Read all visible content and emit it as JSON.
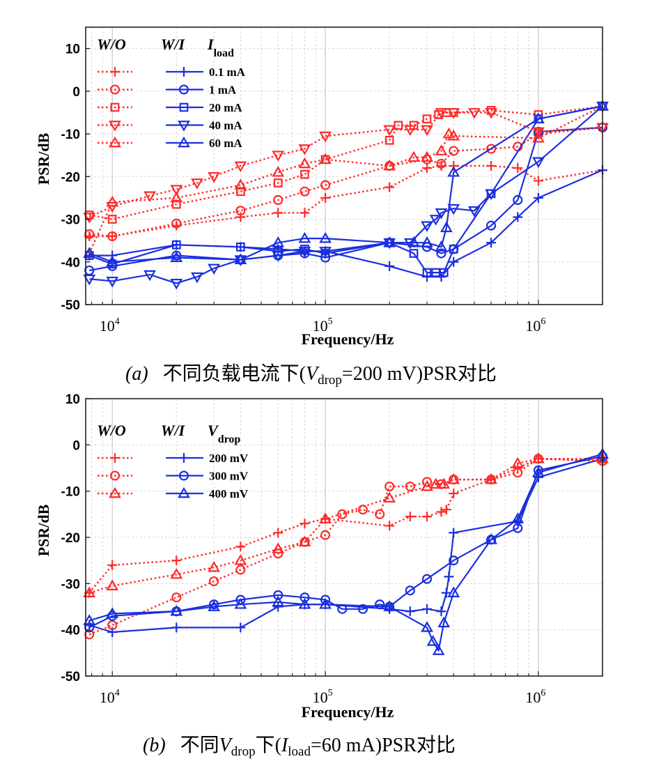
{
  "colors": {
    "wo": "#ff2a2a",
    "wi": "#1a2fe0"
  },
  "chart_data": [
    {
      "type": "line",
      "xscale": "log",
      "xlim": [
        7500,
        2000000
      ],
      "ylim": [
        -50,
        15
      ],
      "xlabel": "Frequency/Hz",
      "ylabel": "PSR/dB",
      "x_ticks": [
        10000,
        100000,
        1000000
      ],
      "x_tick_labels": [
        {
          "base": "10",
          "exp": "4"
        },
        {
          "base": "10",
          "exp": "5"
        },
        {
          "base": "10",
          "exp": "6"
        }
      ],
      "y_ticks": [
        10,
        0,
        -10,
        -20,
        -30,
        -40,
        -50
      ],
      "y_tick_labels": [
        "10",
        "0",
        "-10",
        "-20",
        "-30",
        "-40",
        "-50"
      ],
      "grid": true,
      "legend": {
        "position": "top-left",
        "col_wo": "W/O",
        "col_wi": "W/I",
        "col_param": "I",
        "col_param_sub": "load"
      },
      "caption": {
        "label": "(a)",
        "text1": "不同负载电流下(",
        "v": "V",
        "vsub": "drop",
        "text2": "=200 mV)PSR对比"
      },
      "groups": [
        {
          "label": "0.1 mA",
          "marker": "plus",
          "wo": {
            "x": [
              7800,
              10000,
              20000,
              40000,
              60000,
              80000,
              100000,
              200000,
              300000,
              350000,
              400000,
              600000,
              800000,
              1000000,
              2000000
            ],
            "y": [
              -34,
              -34,
              -31.5,
              -29.5,
              -28.5,
              -28.5,
              -25,
              -22.5,
              -18,
              -17.5,
              -17.5,
              -17.5,
              -18,
              -21,
              -18.5
            ]
          },
          "wi": {
            "x": [
              7800,
              10000,
              20000,
              40000,
              60000,
              80000,
              100000,
              200000,
              300000,
              350000,
              400000,
              600000,
              800000,
              1000000,
              2000000
            ],
            "y": [
              -38.5,
              -38.5,
              -36,
              -36.5,
              -37,
              -37.5,
              -37.5,
              -41,
              -43.5,
              -43.5,
              -40,
              -35.5,
              -29.5,
              -25,
              -18.5
            ]
          }
        },
        {
          "label": "1 mA",
          "marker": "circle",
          "wo": {
            "x": [
              7800,
              10000,
              20000,
              40000,
              60000,
              80000,
              100000,
              200000,
              300000,
              350000,
              400000,
              600000,
              800000,
              1000000,
              2000000
            ],
            "y": [
              -33.5,
              -34,
              -31,
              -28,
              -25.5,
              -23.5,
              -22,
              -17.5,
              -16,
              -17,
              -14,
              -13.5,
              -13,
              -10,
              -8.5
            ]
          },
          "wi": {
            "x": [
              7800,
              10000,
              20000,
              40000,
              60000,
              80000,
              100000,
              200000,
              300000,
              350000,
              400000,
              600000,
              800000,
              1000000,
              2000000
            ],
            "y": [
              -42,
              -41,
              -38.5,
              -39.5,
              -38.5,
              -38,
              -39,
              -35.5,
              -36.5,
              -38,
              -37,
              -31.5,
              -25.5,
              -9.5,
              -8.5
            ]
          }
        },
        {
          "label": "20 mA",
          "marker": "square",
          "wo": {
            "x": [
              7800,
              10000,
              20000,
              40000,
              60000,
              80000,
              100000,
              200000,
              220000,
              260000,
              300000,
              340000,
              370000,
              400000,
              600000,
              1000000,
              2000000
            ],
            "y": [
              -29,
              -30,
              -26.5,
              -23.5,
              -21.5,
              -19.5,
              -16,
              -11.5,
              -8,
              -8,
              -6.5,
              -5.5,
              -5,
              -5,
              -4.5,
              -5.5,
              -3.5
            ]
          },
          "wi": {
            "x": [
              7800,
              10000,
              20000,
              40000,
              60000,
              80000,
              100000,
              200000,
              260000,
              300000,
              330000,
              360000,
              400000,
              600000,
              1000000,
              2000000
            ],
            "y": [
              -38.5,
              -40.5,
              -36,
              -36.5,
              -37.5,
              -37,
              -38,
              -35.5,
              -38,
              -42.5,
              -42.5,
              -42.5,
              -37,
              -24,
              -6.5,
              -3.5
            ]
          }
        },
        {
          "label": "40 mA",
          "marker": "triangle-down",
          "wo": {
            "x": [
              7800,
              10000,
              15000,
              20000,
              25000,
              30000,
              40000,
              60000,
              80000,
              100000,
              200000,
              250000,
              300000,
              350000,
              400000,
              500000,
              600000,
              1000000,
              2000000
            ],
            "y": [
              -29.5,
              -27,
              -24.5,
              -23,
              -21.5,
              -20,
              -17.5,
              -15,
              -13.5,
              -10.5,
              -9,
              -9,
              -9,
              -5,
              -5,
              -5,
              -5,
              -9.5,
              -8.5
            ]
          },
          "wi": {
            "x": [
              7800,
              10000,
              15000,
              20000,
              25000,
              30000,
              40000,
              60000,
              80000,
              100000,
              200000,
              250000,
              300000,
              330000,
              350000,
              400000,
              500000,
              600000,
              1000000,
              2000000
            ],
            "y": [
              -44,
              -44.5,
              -43,
              -45,
              -43.5,
              -41.5,
              -39.5,
              -38.5,
              -37.5,
              -37.5,
              -35.5,
              -35.5,
              -31.5,
              -30,
              -28.5,
              -27.5,
              -28,
              -24,
              -16.5,
              -3.5
            ]
          }
        },
        {
          "label": "60 mA",
          "marker": "triangle-up",
          "wo": {
            "x": [
              7800,
              10000,
              20000,
              40000,
              60000,
              80000,
              100000,
              200000,
              260000,
              300000,
              350000,
              380000,
              400000,
              1000000,
              2000000
            ],
            "y": [
              -38,
              -26,
              -25,
              -22,
              -19,
              -17,
              -16,
              -17.5,
              -15.5,
              -15.5,
              -14,
              -10,
              -10.5,
              -11,
              -3.5
            ]
          },
          "wi": {
            "x": [
              7800,
              10000,
              20000,
              40000,
              60000,
              80000,
              100000,
              200000,
              260000,
              300000,
              350000,
              370000,
              400000,
              1000000,
              2000000
            ],
            "y": [
              -38,
              -40,
              -39,
              -39.5,
              -35.5,
              -34.5,
              -34.5,
              -35.5,
              -35.5,
              -35.5,
              -36.5,
              -32,
              -19,
              -6.5,
              -3.5
            ]
          }
        }
      ]
    },
    {
      "type": "line",
      "xscale": "log",
      "xlim": [
        7500,
        2000000
      ],
      "ylim": [
        -50,
        10
      ],
      "xlabel": "Frequency/Hz",
      "ylabel": "PSR/dB",
      "x_ticks": [
        10000,
        100000,
        1000000
      ],
      "x_tick_labels": [
        {
          "base": "10",
          "exp": "4"
        },
        {
          "base": "10",
          "exp": "5"
        },
        {
          "base": "10",
          "exp": "6"
        }
      ],
      "y_ticks": [
        10,
        0,
        -10,
        -20,
        -30,
        -40,
        -50
      ],
      "y_tick_labels": [
        "10",
        "0",
        "-10",
        "-20",
        "-30",
        "-40",
        "-50"
      ],
      "grid": true,
      "legend": {
        "position": "top-left",
        "col_wo": "W/O",
        "col_wi": "W/I",
        "col_param": "V",
        "col_param_sub": "drop"
      },
      "caption": {
        "label": "(b)",
        "text1": "不同",
        "v": "V",
        "vsub": "drop",
        "text2": "下(",
        "i": "I",
        "isub": "load",
        "text3": "=60 mA)PSR对比"
      },
      "groups": [
        {
          "label": "200 mV",
          "marker": "plus",
          "wo": {
            "x": [
              7800,
              10000,
              20000,
              40000,
              60000,
              80000,
              100000,
              200000,
              250000,
              300000,
              350000,
              370000,
              400000,
              600000,
              800000,
              1000000,
              2000000
            ],
            "y": [
              -32,
              -26,
              -25,
              -22,
              -19,
              -17,
              -16,
              -17.5,
              -15.5,
              -15.5,
              -14.5,
              -14,
              -10.5,
              -7.5,
              -5,
              -3,
              -3.5
            ]
          },
          "wi": {
            "x": [
              7800,
              10000,
              20000,
              40000,
              60000,
              80000,
              100000,
              200000,
              250000,
              300000,
              350000,
              370000,
              380000,
              400000,
              800000,
              1000000,
              2000000
            ],
            "y": [
              -39,
              -40.5,
              -39.5,
              -39.5,
              -35,
              -34.5,
              -34.5,
              -35.5,
              -36,
              -35.5,
              -36,
              -32,
              -28.5,
              -19,
              -16.5,
              -7,
              -3
            ]
          }
        },
        {
          "label": "300 mV",
          "marker": "circle",
          "wo": {
            "x": [
              7800,
              10000,
              20000,
              30000,
              40000,
              60000,
              80000,
              100000,
              120000,
              150000,
              180000,
              200000,
              250000,
              300000,
              350000,
              400000,
              600000,
              800000,
              1000000,
              2000000
            ],
            "y": [
              -41,
              -39,
              -33,
              -29.5,
              -27,
              -23.5,
              -21,
              -19.5,
              -15,
              -14,
              -15,
              -9,
              -9,
              -8,
              -8.5,
              -7.5,
              -7.5,
              -6,
              -3,
              -3.5
            ]
          },
          "wi": {
            "x": [
              7800,
              10000,
              20000,
              30000,
              40000,
              60000,
              80000,
              100000,
              120000,
              150000,
              180000,
              200000,
              250000,
              300000,
              400000,
              600000,
              800000,
              1000000,
              2000000
            ],
            "y": [
              -39.5,
              -37,
              -36,
              -34.5,
              -33.5,
              -32.5,
              -33,
              -33.5,
              -35.5,
              -35.5,
              -34.5,
              -35,
              -31.5,
              -29,
              -25,
              -20.5,
              -18,
              -5.5,
              -2.5
            ]
          }
        },
        {
          "label": "400 mV",
          "marker": "triangle-up",
          "wo": {
            "x": [
              7800,
              10000,
              20000,
              30000,
              40000,
              60000,
              80000,
              100000,
              200000,
              300000,
              330000,
              360000,
              400000,
              600000,
              800000,
              1000000,
              2000000
            ],
            "y": [
              -32,
              -30.5,
              -28,
              -26.5,
              -25,
              -22.5,
              -21,
              -16,
              -11.5,
              -9,
              -8.5,
              -8.5,
              -7.5,
              -7.5,
              -4,
              -3,
              -3
            ]
          },
          "wi": {
            "x": [
              7800,
              10000,
              20000,
              30000,
              40000,
              60000,
              80000,
              100000,
              200000,
              300000,
              320000,
              340000,
              360000,
              400000,
              600000,
              800000,
              1000000,
              2000000
            ],
            "y": [
              -38,
              -36.5,
              -36,
              -35,
              -34.5,
              -34,
              -34.5,
              -34.5,
              -35,
              -39.5,
              -42.5,
              -44.5,
              -38.5,
              -32,
              -20.5,
              -16,
              -6,
              -2
            ]
          }
        }
      ]
    }
  ]
}
